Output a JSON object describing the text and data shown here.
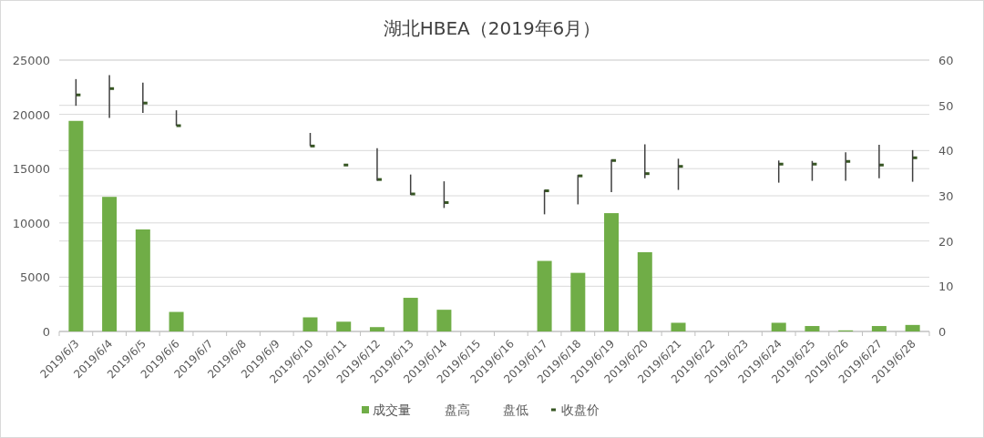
{
  "chart_data": {
    "type": "bar",
    "title": "湖北HBEA（2019年6月）",
    "categories": [
      "2019/6/3",
      "2019/6/4",
      "2019/6/5",
      "2019/6/6",
      "2019/6/7",
      "2019/6/8",
      "2019/6/9",
      "2019/6/10",
      "2019/6/11",
      "2019/6/12",
      "2019/6/13",
      "2019/6/14",
      "2019/6/15",
      "2019/6/16",
      "2019/6/17",
      "2019/6/18",
      "2019/6/19",
      "2019/6/20",
      "2019/6/21",
      "2019/6/22",
      "2019/6/23",
      "2019/6/24",
      "2019/6/25",
      "2019/6/26",
      "2019/6/27",
      "2019/6/28"
    ],
    "series": [
      {
        "name": "成交量",
        "color": "#70ad47",
        "values": [
          19400,
          12400,
          9400,
          1800,
          null,
          null,
          null,
          1300,
          900,
          400,
          3100,
          2000,
          null,
          null,
          6500,
          5400,
          10900,
          7300,
          800,
          null,
          null,
          800,
          500,
          100,
          500,
          600
        ]
      },
      {
        "name": "收盘价",
        "type": "scatter",
        "axis": "y2",
        "color": "#375623",
        "values": [
          52.3,
          53.7,
          50.5,
          45.5,
          null,
          null,
          null,
          41.0,
          36.8,
          33.6,
          30.4,
          28.5,
          null,
          null,
          31.1,
          34.4,
          37.8,
          34.9,
          36.5,
          null,
          null,
          37.0,
          37.0,
          37.6,
          36.8,
          38.4
        ],
        "errors": [
          [
            49.9,
            55.8
          ],
          [
            47.2,
            56.7
          ],
          [
            48.3,
            55.0
          ],
          [
            45.5,
            48.9
          ],
          null,
          null,
          null,
          [
            41.0,
            43.9
          ],
          null,
          [
            33.3,
            40.5
          ],
          [
            30.2,
            34.7
          ],
          [
            27.3,
            33.2
          ],
          null,
          null,
          [
            25.9,
            31.3
          ],
          [
            28.1,
            34.6
          ],
          [
            30.8,
            38.0
          ],
          [
            33.9,
            41.4
          ],
          [
            31.3,
            38.2
          ],
          null,
          null,
          [
            32.9,
            37.8
          ],
          [
            33.3,
            37.7
          ],
          [
            33.3,
            39.6
          ],
          [
            33.9,
            41.3
          ],
          [
            33.1,
            40.1
          ]
        ]
      }
    ],
    "annotations": [
      "盘高",
      "盘低"
    ],
    "ylim": [
      0,
      25000
    ],
    "yticks": [
      0,
      5000,
      10000,
      15000,
      20000,
      25000
    ],
    "y2lim": [
      0,
      60
    ],
    "y2ticks": [
      0,
      10,
      20,
      30,
      40,
      50,
      60
    ],
    "grid": true,
    "legend": "bottom"
  }
}
